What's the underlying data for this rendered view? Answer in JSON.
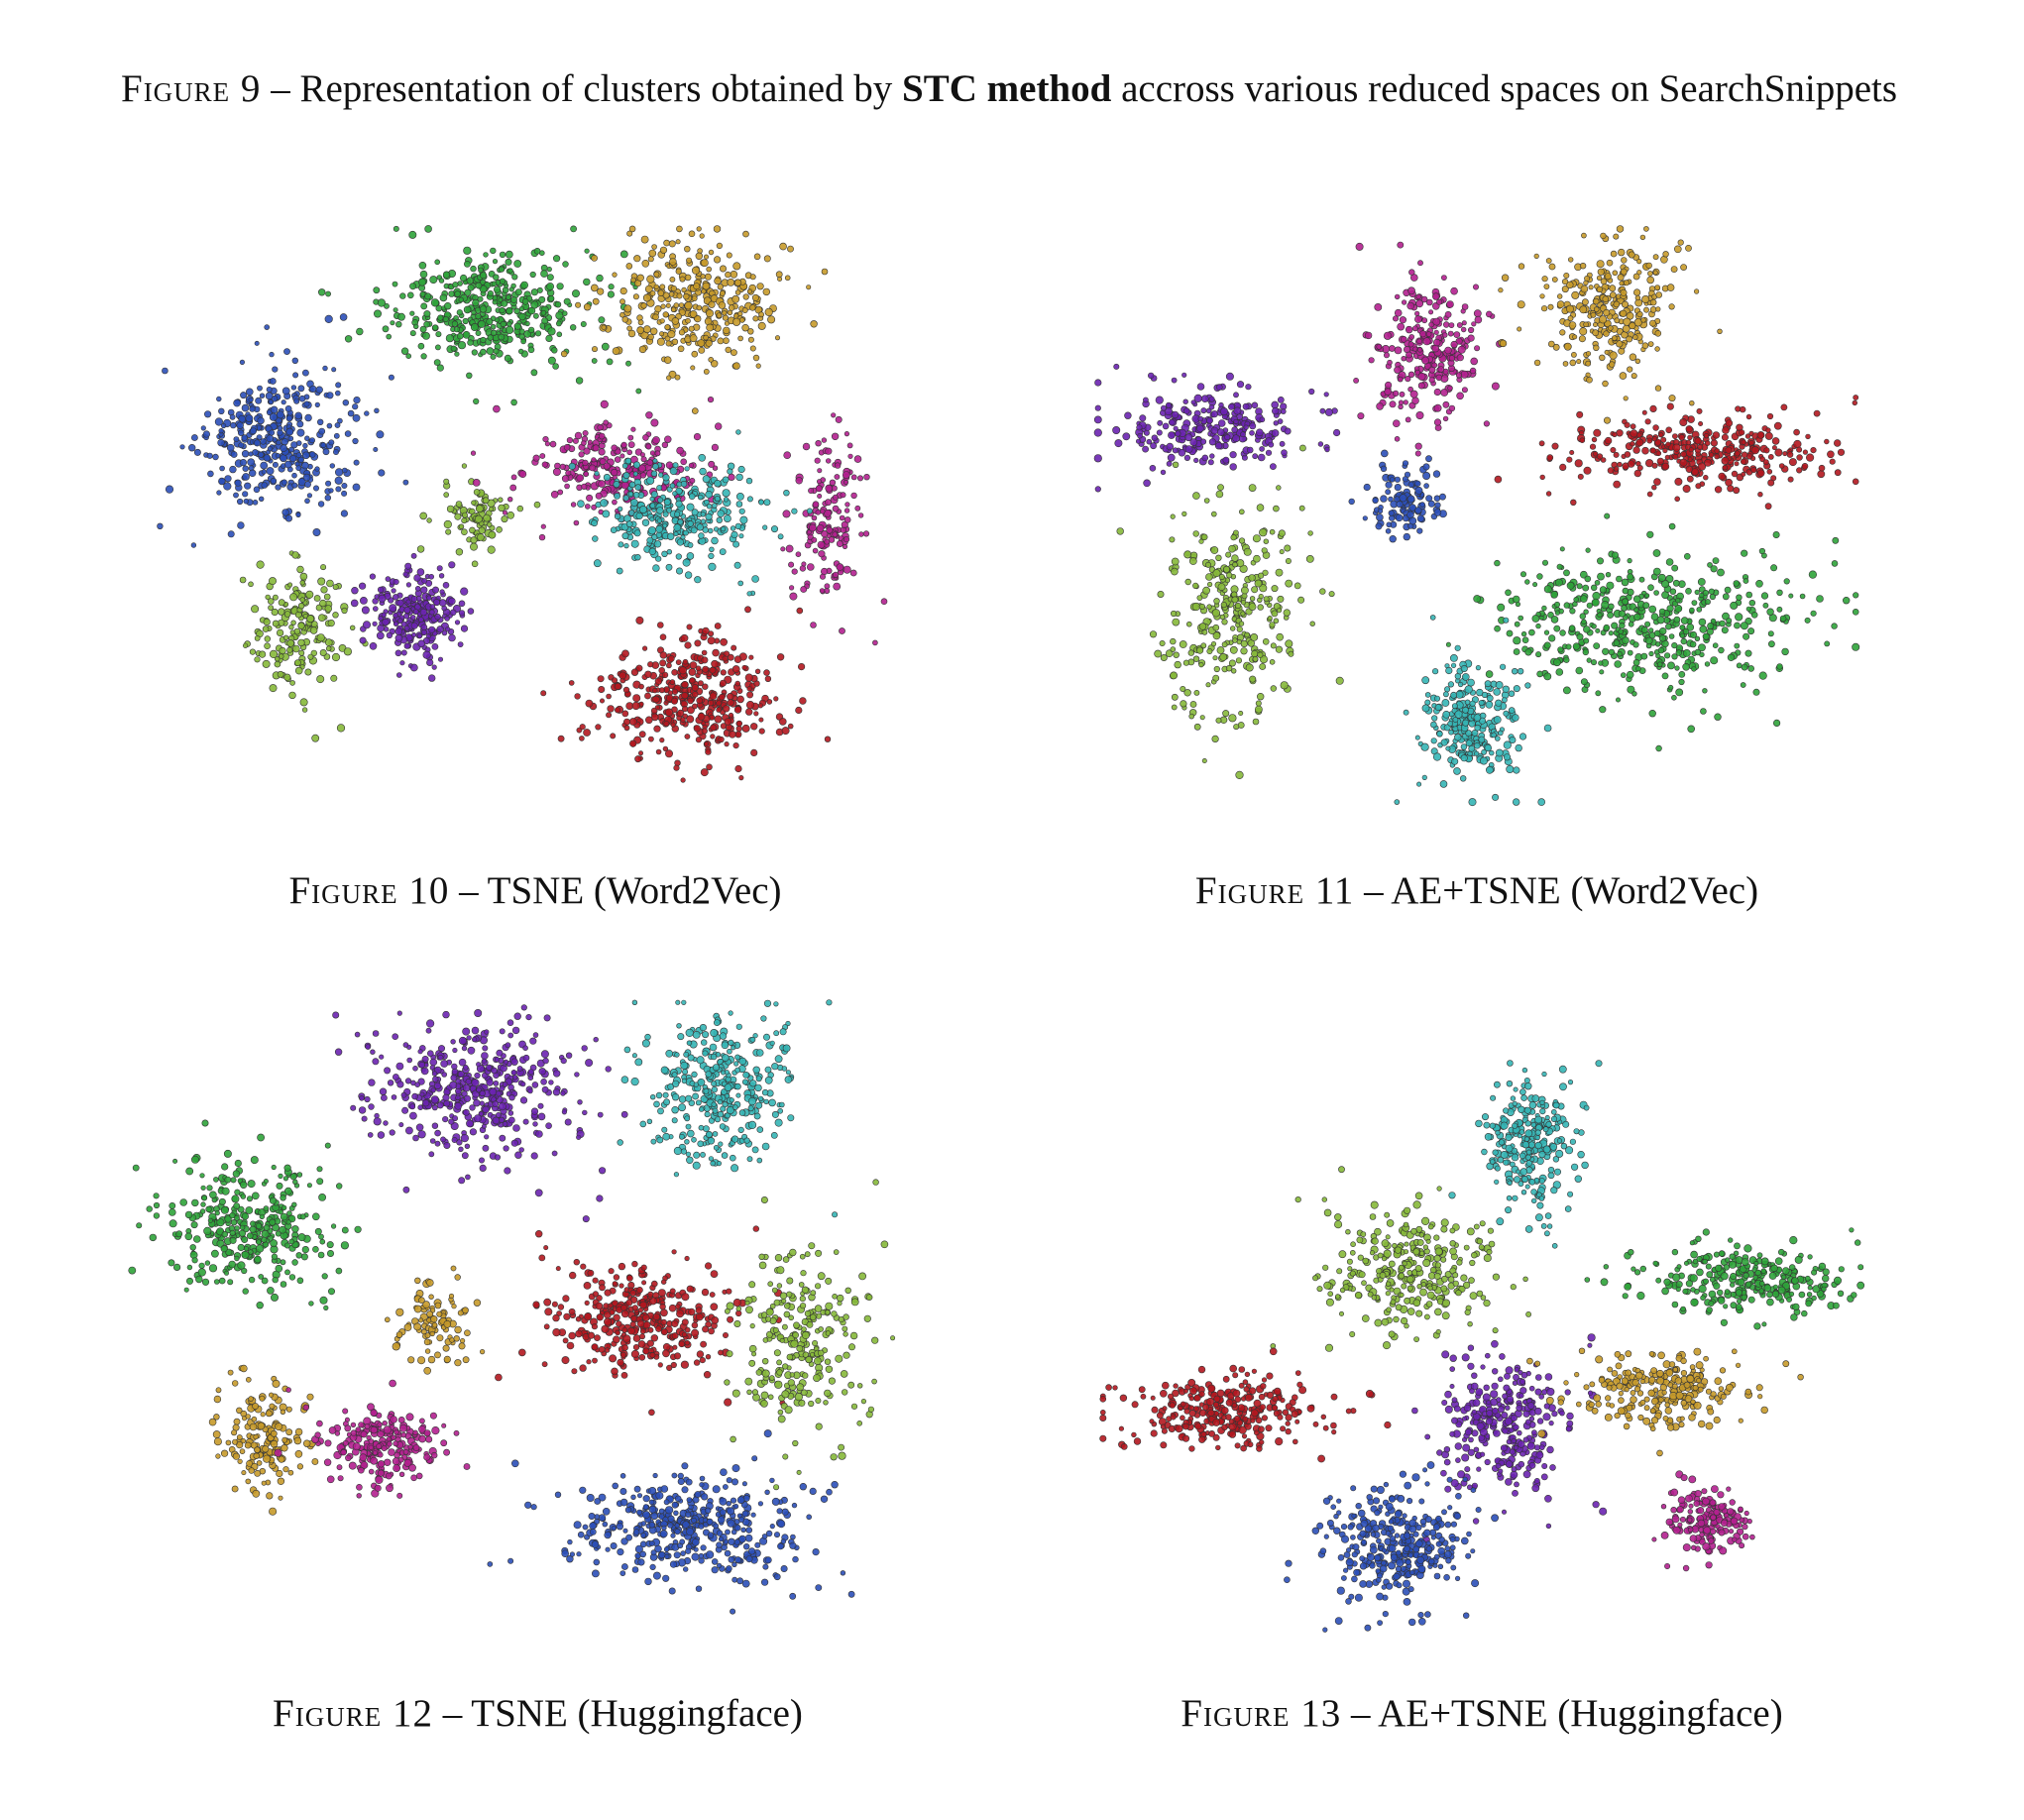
{
  "caption": {
    "label": "Figure 9",
    "sep": " – ",
    "pre": "Representation of clusters obtained by ",
    "bold": "STC method",
    "post": " accross various reduced spaces on SearchSnippets"
  },
  "palette": {
    "blue": "#2b4fb8",
    "green": "#2fa33a",
    "gold": "#c79a2a",
    "purple": "#6a24b0",
    "lime": "#86b83a",
    "magenta": "#b3208f",
    "cyan": "#35b5b5",
    "red": "#b3171f"
  },
  "panels": [
    {
      "label": "Figure 10",
      "sep": " – ",
      "title": "TSNE (Word2Vec)",
      "chart_data": {
        "type": "scatter",
        "clusters": [
          {
            "color": "blue",
            "center": [
              0.18,
              0.37
            ],
            "spread": [
              0.11,
              0.14
            ],
            "count": 360
          },
          {
            "color": "green",
            "center": [
              0.44,
              0.15
            ],
            "spread": [
              0.14,
              0.11
            ],
            "count": 420
          },
          {
            "color": "gold",
            "center": [
              0.7,
              0.14
            ],
            "spread": [
              0.12,
              0.12
            ],
            "count": 340
          },
          {
            "color": "lime",
            "center": [
              0.2,
              0.69
            ],
            "spread": [
              0.07,
              0.12
            ],
            "count": 180
          },
          {
            "color": "lime",
            "center": [
              0.43,
              0.5
            ],
            "spread": [
              0.05,
              0.06
            ],
            "count": 90
          },
          {
            "color": "purple",
            "center": [
              0.35,
              0.67
            ],
            "spread": [
              0.07,
              0.09
            ],
            "count": 240
          },
          {
            "color": "magenta",
            "center": [
              0.6,
              0.42
            ],
            "spread": [
              0.12,
              0.09
            ],
            "count": 260
          },
          {
            "color": "magenta",
            "center": [
              0.87,
              0.5
            ],
            "spread": [
              0.05,
              0.16
            ],
            "count": 160
          },
          {
            "color": "cyan",
            "center": [
              0.68,
              0.5
            ],
            "spread": [
              0.12,
              0.1
            ],
            "count": 300
          },
          {
            "color": "red",
            "center": [
              0.69,
              0.81
            ],
            "spread": [
              0.13,
              0.12
            ],
            "count": 380
          }
        ]
      }
    },
    {
      "label": "Figure 11",
      "sep": " – ",
      "title": "AE+TSNE (Word2Vec)",
      "chart_data": {
        "type": "scatter",
        "clusters": [
          {
            "color": "purple",
            "center": [
              0.16,
              0.35
            ],
            "spread": [
              0.14,
              0.08
            ],
            "count": 260
          },
          {
            "color": "magenta",
            "center": [
              0.44,
              0.21
            ],
            "spread": [
              0.08,
              0.13
            ],
            "count": 260
          },
          {
            "color": "gold",
            "center": [
              0.67,
              0.15
            ],
            "spread": [
              0.1,
              0.14
            ],
            "count": 280
          },
          {
            "color": "red",
            "center": [
              0.78,
              0.39
            ],
            "spread": [
              0.18,
              0.07
            ],
            "count": 320
          },
          {
            "color": "blue",
            "center": [
              0.41,
              0.48
            ],
            "spread": [
              0.05,
              0.07
            ],
            "count": 110
          },
          {
            "color": "lime",
            "center": [
              0.18,
              0.67
            ],
            "spread": [
              0.1,
              0.2
            ],
            "count": 320
          },
          {
            "color": "green",
            "center": [
              0.72,
              0.68
            ],
            "spread": [
              0.22,
              0.13
            ],
            "count": 480
          },
          {
            "color": "cyan",
            "center": [
              0.49,
              0.85
            ],
            "spread": [
              0.07,
              0.12
            ],
            "count": 260
          }
        ]
      }
    },
    {
      "label": "Figure 12",
      "sep": " – ",
      "title": "TSNE (Huggingface)",
      "chart_data": {
        "type": "scatter",
        "clusters": [
          {
            "color": "green",
            "center": [
              0.15,
              0.37
            ],
            "spread": [
              0.12,
              0.12
            ],
            "count": 330
          },
          {
            "color": "purple",
            "center": [
              0.42,
              0.15
            ],
            "spread": [
              0.14,
              0.12
            ],
            "count": 420
          },
          {
            "color": "cyan",
            "center": [
              0.72,
              0.15
            ],
            "spread": [
              0.1,
              0.14
            ],
            "count": 340
          },
          {
            "color": "gold",
            "center": [
              0.17,
              0.71
            ],
            "spread": [
              0.06,
              0.1
            ],
            "count": 160
          },
          {
            "color": "gold",
            "center": [
              0.38,
              0.52
            ],
            "spread": [
              0.05,
              0.08
            ],
            "count": 100
          },
          {
            "color": "magenta",
            "center": [
              0.31,
              0.72
            ],
            "spread": [
              0.08,
              0.07
            ],
            "count": 220
          },
          {
            "color": "red",
            "center": [
              0.62,
              0.52
            ],
            "spread": [
              0.12,
              0.1
            ],
            "count": 340
          },
          {
            "color": "lime",
            "center": [
              0.82,
              0.55
            ],
            "spread": [
              0.09,
              0.17
            ],
            "count": 260
          },
          {
            "color": "blue",
            "center": [
              0.68,
              0.85
            ],
            "spread": [
              0.16,
              0.1
            ],
            "count": 420
          }
        ]
      }
    },
    {
      "label": "Figure 13",
      "sep": " – ",
      "title": "AE+TSNE (Huggingface)",
      "chart_data": {
        "type": "scatter",
        "clusters": [
          {
            "color": "cyan",
            "center": [
              0.56,
              0.16
            ],
            "spread": [
              0.07,
              0.13
            ],
            "count": 260
          },
          {
            "color": "lime",
            "center": [
              0.4,
              0.37
            ],
            "spread": [
              0.12,
              0.12
            ],
            "count": 300
          },
          {
            "color": "green",
            "center": [
              0.84,
              0.39
            ],
            "spread": [
              0.16,
              0.07
            ],
            "count": 280
          },
          {
            "color": "red",
            "center": [
              0.17,
              0.62
            ],
            "spread": [
              0.15,
              0.07
            ],
            "count": 280
          },
          {
            "color": "purple",
            "center": [
              0.53,
              0.64
            ],
            "spread": [
              0.09,
              0.14
            ],
            "count": 300
          },
          {
            "color": "gold",
            "center": [
              0.74,
              0.58
            ],
            "spread": [
              0.12,
              0.07
            ],
            "count": 240
          },
          {
            "color": "magenta",
            "center": [
              0.79,
              0.8
            ],
            "spread": [
              0.06,
              0.07
            ],
            "count": 160
          },
          {
            "color": "blue",
            "center": [
              0.39,
              0.84
            ],
            "spread": [
              0.1,
              0.11
            ],
            "count": 320
          }
        ]
      }
    }
  ]
}
